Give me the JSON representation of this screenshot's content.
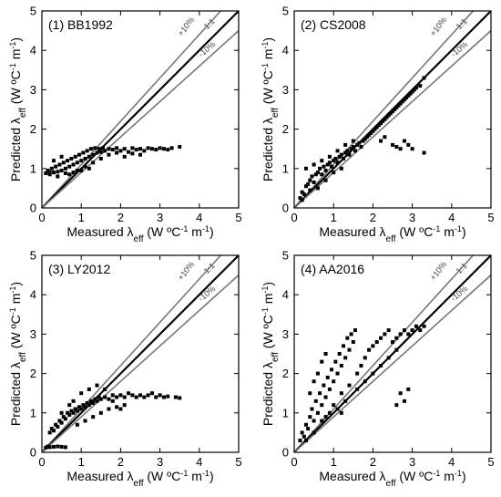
{
  "chart_data": [
    {
      "type": "scatter",
      "title": "(1) BB1992",
      "xlabel": "Measured λeff (W ºC-1 m-1)",
      "ylabel": "Predicted λeff (W ºC-1 m-1)",
      "xlim": [
        0,
        5
      ],
      "ylim": [
        0,
        5
      ],
      "xticks": [
        "0",
        "1",
        "2",
        "3",
        "4",
        "5"
      ],
      "yticks": [
        "0",
        "1",
        "2",
        "3",
        "4",
        "5"
      ],
      "reference_lines": [
        {
          "label": "+10%",
          "slope": 1.1
        },
        {
          "label": "1:1",
          "slope": 1.0
        },
        {
          "label": "-10%",
          "slope": 0.9
        }
      ],
      "points": [
        [
          0.1,
          0.88
        ],
        [
          0.15,
          0.95
        ],
        [
          0.2,
          0.85
        ],
        [
          0.25,
          1.0
        ],
        [
          0.3,
          0.9
        ],
        [
          0.35,
          1.05
        ],
        [
          0.4,
          0.92
        ],
        [
          0.45,
          1.1
        ],
        [
          0.5,
          0.95
        ],
        [
          0.55,
          1.15
        ],
        [
          0.6,
          1.0
        ],
        [
          0.65,
          1.2
        ],
        [
          0.7,
          1.05
        ],
        [
          0.75,
          1.25
        ],
        [
          0.8,
          1.1
        ],
        [
          0.85,
          1.3
        ],
        [
          0.9,
          1.15
        ],
        [
          0.95,
          1.35
        ],
        [
          1.0,
          1.2
        ],
        [
          1.05,
          1.4
        ],
        [
          1.1,
          1.25
        ],
        [
          1.15,
          1.45
        ],
        [
          1.2,
          1.3
        ],
        [
          1.25,
          1.5
        ],
        [
          1.3,
          1.35
        ],
        [
          1.35,
          1.52
        ],
        [
          1.4,
          1.4
        ],
        [
          1.45,
          1.5
        ],
        [
          1.5,
          1.42
        ],
        [
          1.55,
          1.52
        ],
        [
          1.6,
          1.45
        ],
        [
          1.7,
          1.5
        ],
        [
          1.8,
          1.48
        ],
        [
          1.9,
          1.52
        ],
        [
          2.0,
          1.45
        ],
        [
          2.1,
          1.5
        ],
        [
          2.2,
          1.42
        ],
        [
          2.3,
          1.52
        ],
        [
          2.4,
          1.48
        ],
        [
          2.5,
          1.5
        ],
        [
          2.6,
          1.45
        ],
        [
          2.7,
          1.52
        ],
        [
          2.8,
          1.5
        ],
        [
          2.9,
          1.48
        ],
        [
          3.0,
          1.52
        ],
        [
          3.1,
          1.5
        ],
        [
          3.2,
          1.48
        ],
        [
          3.3,
          1.52
        ],
        [
          3.5,
          1.55
        ],
        [
          0.3,
          1.2
        ],
        [
          0.5,
          1.3
        ],
        [
          0.7,
          0.85
        ],
        [
          0.9,
          0.95
        ],
        [
          1.1,
          1.05
        ],
        [
          1.3,
          1.15
        ],
        [
          1.5,
          1.25
        ],
        [
          1.7,
          1.35
        ],
        [
          1.9,
          1.4
        ],
        [
          2.1,
          1.3
        ],
        [
          2.3,
          1.38
        ],
        [
          2.5,
          1.35
        ],
        [
          0.6,
          0.88
        ],
        [
          0.8,
          0.9
        ],
        [
          1.0,
          0.95
        ],
        [
          1.2,
          1.0
        ],
        [
          0.4,
          0.8
        ],
        [
          0.2,
          0.9
        ]
      ]
    },
    {
      "type": "scatter",
      "title": "(2) CS2008",
      "xlabel": "Measured λeff (W ºC-1 m-1)",
      "ylabel": "Predicted λeff (W ºC-1 m-1)",
      "xlim": [
        0,
        5
      ],
      "ylim": [
        0,
        5
      ],
      "xticks": [
        "0",
        "1",
        "2",
        "3",
        "4",
        "5"
      ],
      "yticks": [
        "0",
        "1",
        "2",
        "3",
        "4",
        "5"
      ],
      "reference_lines": [
        {
          "label": "+10%",
          "slope": 1.1
        },
        {
          "label": "1:1",
          "slope": 1.0
        },
        {
          "label": "-10%",
          "slope": 0.9
        }
      ],
      "points": [
        [
          0.15,
          0.25
        ],
        [
          0.2,
          0.4
        ],
        [
          0.25,
          0.35
        ],
        [
          0.3,
          0.55
        ],
        [
          0.35,
          0.6
        ],
        [
          0.4,
          0.7
        ],
        [
          0.45,
          0.8
        ],
        [
          0.5,
          0.65
        ],
        [
          0.55,
          0.85
        ],
        [
          0.6,
          0.9
        ],
        [
          0.65,
          1.0
        ],
        [
          0.7,
          0.85
        ],
        [
          0.75,
          1.05
        ],
        [
          0.8,
          0.95
        ],
        [
          0.85,
          1.1
        ],
        [
          0.9,
          1.15
        ],
        [
          0.95,
          1.05
        ],
        [
          1.0,
          1.2
        ],
        [
          1.05,
          1.25
        ],
        [
          1.1,
          1.15
        ],
        [
          1.15,
          1.3
        ],
        [
          1.2,
          1.35
        ],
        [
          1.25,
          1.25
        ],
        [
          1.3,
          1.4
        ],
        [
          1.35,
          1.45
        ],
        [
          1.4,
          1.35
        ],
        [
          1.45,
          1.5
        ],
        [
          1.5,
          1.55
        ],
        [
          1.55,
          1.45
        ],
        [
          1.6,
          1.6
        ],
        [
          1.65,
          1.65
        ],
        [
          1.7,
          1.55
        ],
        [
          1.75,
          1.7
        ],
        [
          1.8,
          1.75
        ],
        [
          1.85,
          1.8
        ],
        [
          1.9,
          1.85
        ],
        [
          1.95,
          1.9
        ],
        [
          2.0,
          1.95
        ],
        [
          2.05,
          2.0
        ],
        [
          2.1,
          2.05
        ],
        [
          2.15,
          2.1
        ],
        [
          2.2,
          2.15
        ],
        [
          2.25,
          2.2
        ],
        [
          2.3,
          2.25
        ],
        [
          2.35,
          2.3
        ],
        [
          2.4,
          2.35
        ],
        [
          2.45,
          2.4
        ],
        [
          2.5,
          2.45
        ],
        [
          2.55,
          2.5
        ],
        [
          2.6,
          2.55
        ],
        [
          2.65,
          2.6
        ],
        [
          2.7,
          2.65
        ],
        [
          2.75,
          2.7
        ],
        [
          2.8,
          2.75
        ],
        [
          2.85,
          2.8
        ],
        [
          2.9,
          2.85
        ],
        [
          2.95,
          2.9
        ],
        [
          3.0,
          2.95
        ],
        [
          3.05,
          3.0
        ],
        [
          3.1,
          3.05
        ],
        [
          3.2,
          3.1
        ],
        [
          3.3,
          3.3
        ],
        [
          0.3,
          1.0
        ],
        [
          0.5,
          1.1
        ],
        [
          0.7,
          1.2
        ],
        [
          0.9,
          1.3
        ],
        [
          1.1,
          1.45
        ],
        [
          1.3,
          1.6
        ],
        [
          1.5,
          1.7
        ],
        [
          2.2,
          1.7
        ],
        [
          2.3,
          1.8
        ],
        [
          2.5,
          1.6
        ],
        [
          2.6,
          1.55
        ],
        [
          2.7,
          1.5
        ],
        [
          2.8,
          1.7
        ],
        [
          2.9,
          1.6
        ],
        [
          3.0,
          1.5
        ],
        [
          3.3,
          1.4
        ],
        [
          0.2,
          0.2
        ],
        [
          0.4,
          0.45
        ],
        [
          0.6,
          0.5
        ],
        [
          0.8,
          0.7
        ],
        [
          1.0,
          0.9
        ],
        [
          1.2,
          1.0
        ]
      ]
    },
    {
      "type": "scatter",
      "title": "(3) LY2012",
      "xlabel": "Measured λeff (W ºC-1 m-1)",
      "ylabel": "Predicted λeff (W ºC-1 m-1)",
      "xlim": [
        0,
        5
      ],
      "ylim": [
        0,
        5
      ],
      "xticks": [
        "0",
        "1",
        "2",
        "3",
        "4",
        "5"
      ],
      "yticks": [
        "0",
        "1",
        "2",
        "3",
        "4",
        "5"
      ],
      "reference_lines": [
        {
          "label": "+10%",
          "slope": 1.1
        },
        {
          "label": "1:1",
          "slope": 1.0
        },
        {
          "label": "-10%",
          "slope": 0.9
        }
      ],
      "points": [
        [
          0.1,
          0.12
        ],
        [
          0.15,
          0.15
        ],
        [
          0.2,
          0.13
        ],
        [
          0.3,
          0.14
        ],
        [
          0.4,
          0.15
        ],
        [
          0.5,
          0.14
        ],
        [
          0.6,
          0.13
        ],
        [
          0.2,
          0.5
        ],
        [
          0.25,
          0.6
        ],
        [
          0.3,
          0.55
        ],
        [
          0.35,
          0.7
        ],
        [
          0.4,
          0.65
        ],
        [
          0.45,
          0.8
        ],
        [
          0.5,
          0.75
        ],
        [
          0.55,
          0.9
        ],
        [
          0.6,
          0.85
        ],
        [
          0.65,
          1.0
        ],
        [
          0.7,
          0.95
        ],
        [
          0.75,
          1.05
        ],
        [
          0.8,
          1.0
        ],
        [
          0.85,
          1.1
        ],
        [
          0.9,
          1.05
        ],
        [
          0.95,
          1.15
        ],
        [
          1.0,
          1.1
        ],
        [
          1.05,
          1.2
        ],
        [
          1.1,
          1.15
        ],
        [
          1.15,
          1.25
        ],
        [
          1.2,
          1.2
        ],
        [
          1.25,
          1.3
        ],
        [
          1.3,
          1.25
        ],
        [
          1.35,
          1.35
        ],
        [
          1.4,
          1.3
        ],
        [
          1.45,
          1.4
        ],
        [
          1.5,
          1.35
        ],
        [
          1.6,
          1.4
        ],
        [
          1.7,
          1.35
        ],
        [
          1.8,
          1.45
        ],
        [
          1.9,
          1.4
        ],
        [
          2.0,
          1.45
        ],
        [
          2.1,
          1.4
        ],
        [
          2.2,
          1.5
        ],
        [
          2.3,
          1.45
        ],
        [
          2.4,
          1.4
        ],
        [
          2.5,
          1.45
        ],
        [
          2.6,
          1.4
        ],
        [
          2.7,
          1.45
        ],
        [
          2.8,
          1.5
        ],
        [
          2.9,
          1.4
        ],
        [
          3.0,
          1.45
        ],
        [
          3.1,
          1.4
        ],
        [
          3.2,
          1.42
        ],
        [
          3.4,
          1.4
        ],
        [
          3.5,
          1.38
        ],
        [
          0.8,
          1.3
        ],
        [
          1.0,
          1.5
        ],
        [
          1.2,
          1.6
        ],
        [
          1.4,
          1.7
        ],
        [
          0.9,
          0.7
        ],
        [
          1.1,
          0.8
        ],
        [
          1.3,
          0.9
        ],
        [
          1.5,
          1.0
        ],
        [
          1.7,
          1.1
        ],
        [
          1.9,
          1.15
        ],
        [
          2.1,
          1.2
        ],
        [
          0.5,
          1.0
        ],
        [
          0.7,
          1.2
        ],
        [
          1.6,
          1.6
        ],
        [
          1.8,
          1.3
        ],
        [
          2.0,
          1.1
        ]
      ]
    },
    {
      "type": "scatter",
      "title": "(4) AA2016",
      "xlabel": "Measured λeff (W ºC-1 m-1)",
      "ylabel": "Predicted λeff (W ºC-1 m-1)",
      "xlim": [
        0,
        5
      ],
      "ylim": [
        0,
        5
      ],
      "xticks": [
        "0",
        "1",
        "2",
        "3",
        "4",
        "5"
      ],
      "yticks": [
        "0",
        "1",
        "2",
        "3",
        "4",
        "5"
      ],
      "reference_lines": [
        {
          "label": "+10%",
          "slope": 1.1
        },
        {
          "label": "1:1",
          "slope": 1.0
        },
        {
          "label": "-10%",
          "slope": 0.9
        }
      ],
      "points": [
        [
          0.15,
          0.3
        ],
        [
          0.2,
          0.5
        ],
        [
          0.25,
          0.4
        ],
        [
          0.3,
          0.7
        ],
        [
          0.35,
          0.6
        ],
        [
          0.4,
          0.9
        ],
        [
          0.45,
          1.1
        ],
        [
          0.5,
          0.8
        ],
        [
          0.55,
          1.3
        ],
        [
          0.6,
          1.0
        ],
        [
          0.65,
          1.5
        ],
        [
          0.7,
          1.2
        ],
        [
          0.75,
          1.7
        ],
        [
          0.8,
          1.4
        ],
        [
          0.85,
          1.9
        ],
        [
          0.9,
          1.6
        ],
        [
          0.95,
          2.1
        ],
        [
          1.0,
          1.8
        ],
        [
          1.05,
          2.3
        ],
        [
          1.1,
          2.0
        ],
        [
          1.15,
          2.5
        ],
        [
          1.2,
          2.2
        ],
        [
          1.25,
          2.7
        ],
        [
          1.3,
          2.4
        ],
        [
          1.35,
          2.9
        ],
        [
          1.4,
          2.6
        ],
        [
          1.45,
          3.0
        ],
        [
          1.5,
          2.8
        ],
        [
          1.55,
          3.1
        ],
        [
          1.6,
          2.0
        ],
        [
          1.7,
          2.2
        ],
        [
          1.8,
          2.4
        ],
        [
          1.9,
          2.6
        ],
        [
          2.0,
          2.7
        ],
        [
          2.1,
          2.8
        ],
        [
          2.2,
          2.9
        ],
        [
          2.3,
          3.0
        ],
        [
          2.4,
          3.1
        ],
        [
          2.5,
          2.8
        ],
        [
          2.6,
          2.9
        ],
        [
          2.7,
          3.0
        ],
        [
          2.8,
          3.1
        ],
        [
          2.9,
          3.0
        ],
        [
          3.0,
          3.1
        ],
        [
          3.1,
          3.2
        ],
        [
          3.2,
          3.1
        ],
        [
          3.3,
          3.2
        ],
        [
          0.4,
          1.5
        ],
        [
          0.5,
          1.8
        ],
        [
          0.6,
          2.0
        ],
        [
          0.7,
          2.3
        ],
        [
          0.8,
          2.5
        ],
        [
          1.0,
          1.2
        ],
        [
          1.2,
          1.5
        ],
        [
          1.4,
          1.7
        ],
        [
          1.6,
          1.6
        ],
        [
          1.8,
          1.8
        ],
        [
          2.0,
          2.0
        ],
        [
          2.2,
          2.2
        ],
        [
          2.4,
          2.4
        ],
        [
          2.6,
          2.6
        ],
        [
          0.3,
          0.3
        ],
        [
          0.5,
          0.5
        ],
        [
          0.7,
          0.8
        ],
        [
          0.9,
          1.0
        ],
        [
          1.1,
          1.1
        ],
        [
          1.3,
          1.3
        ],
        [
          2.6,
          1.2
        ],
        [
          2.7,
          1.5
        ],
        [
          2.8,
          1.3
        ],
        [
          2.9,
          1.6
        ],
        [
          1.2,
          1.0
        ],
        [
          0.8,
          0.9
        ]
      ]
    }
  ]
}
